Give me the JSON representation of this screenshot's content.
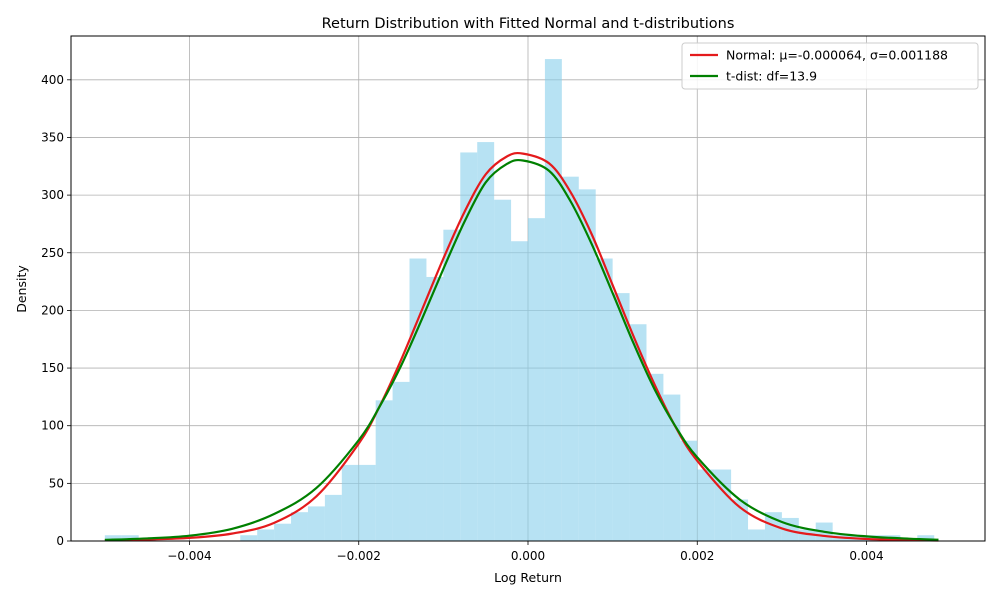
{
  "chart_data": {
    "type": "bar",
    "title": "Return Distribution with Fitted Normal and t-distributions",
    "xlabel": "Log Return",
    "ylabel": "Density",
    "xlim": [
      -0.0054,
      0.0054
    ],
    "ylim": [
      0,
      438
    ],
    "x_ticks": [
      -0.004,
      -0.002,
      0.0,
      0.002,
      0.004
    ],
    "x_tick_labels": [
      "−0.004",
      "−0.002",
      "0.000",
      "0.002",
      "0.004"
    ],
    "y_ticks": [
      0,
      50,
      100,
      150,
      200,
      250,
      300,
      350,
      400
    ],
    "y_tick_labels": [
      "0",
      "50",
      "100",
      "150",
      "200",
      "250",
      "300",
      "350",
      "400"
    ],
    "grid": true,
    "legend_position": "top-right",
    "histogram": {
      "color": "#87ceeb",
      "opacity": 0.6,
      "bins": [
        {
          "x0": -0.005,
          "x1": -0.0048,
          "value": 5
        },
        {
          "x0": -0.0048,
          "x1": -0.0046,
          "value": 5
        },
        {
          "x0": -0.0046,
          "x1": -0.0044,
          "value": 2
        },
        {
          "x0": -0.0044,
          "x1": -0.0042,
          "value": 0
        },
        {
          "x0": -0.0042,
          "x1": -0.004,
          "value": 0
        },
        {
          "x0": -0.004,
          "x1": -0.0038,
          "value": 0
        },
        {
          "x0": -0.0038,
          "x1": -0.0036,
          "value": 0
        },
        {
          "x0": -0.0036,
          "x1": -0.0034,
          "value": 0
        },
        {
          "x0": -0.0034,
          "x1": -0.0032,
          "value": 5
        },
        {
          "x0": -0.0032,
          "x1": -0.003,
          "value": 10
        },
        {
          "x0": -0.003,
          "x1": -0.0028,
          "value": 15
        },
        {
          "x0": -0.0028,
          "x1": -0.0026,
          "value": 25
        },
        {
          "x0": -0.0026,
          "x1": -0.0024,
          "value": 30
        },
        {
          "x0": -0.0024,
          "x1": -0.0022,
          "value": 40
        },
        {
          "x0": -0.0022,
          "x1": -0.002,
          "value": 66
        },
        {
          "x0": -0.002,
          "x1": -0.0018,
          "value": 66
        },
        {
          "x0": -0.0018,
          "x1": -0.0016,
          "value": 122
        },
        {
          "x0": -0.0016,
          "x1": -0.0014,
          "value": 138
        },
        {
          "x0": -0.0014,
          "x1": -0.0012,
          "value": 245
        },
        {
          "x0": -0.0012,
          "x1": -0.001,
          "value": 229
        },
        {
          "x0": -0.001,
          "x1": -0.0008,
          "value": 270
        },
        {
          "x0": -0.0008,
          "x1": -0.0006,
          "value": 337
        },
        {
          "x0": -0.0006,
          "x1": -0.0004,
          "value": 346
        },
        {
          "x0": -0.0004,
          "x1": -0.0002,
          "value": 296
        },
        {
          "x0": -0.0002,
          "x1": 0.0,
          "value": 260
        },
        {
          "x0": 0.0,
          "x1": 0.0002,
          "value": 280
        },
        {
          "x0": 0.0002,
          "x1": 0.0004,
          "value": 418
        },
        {
          "x0": 0.0004,
          "x1": 0.0006,
          "value": 316
        },
        {
          "x0": 0.0006,
          "x1": 0.0008,
          "value": 305
        },
        {
          "x0": 0.0008,
          "x1": 0.001,
          "value": 245
        },
        {
          "x0": 0.001,
          "x1": 0.0012,
          "value": 215
        },
        {
          "x0": 0.0012,
          "x1": 0.0014,
          "value": 188
        },
        {
          "x0": 0.0014,
          "x1": 0.0016,
          "value": 145
        },
        {
          "x0": 0.0016,
          "x1": 0.0018,
          "value": 127
        },
        {
          "x0": 0.0018,
          "x1": 0.002,
          "value": 87
        },
        {
          "x0": 0.002,
          "x1": 0.0022,
          "value": 62
        },
        {
          "x0": 0.0022,
          "x1": 0.0024,
          "value": 62
        },
        {
          "x0": 0.0024,
          "x1": 0.0026,
          "value": 36
        },
        {
          "x0": 0.0026,
          "x1": 0.0028,
          "value": 10
        },
        {
          "x0": 0.0028,
          "x1": 0.003,
          "value": 25
        },
        {
          "x0": 0.003,
          "x1": 0.0032,
          "value": 20
        },
        {
          "x0": 0.0032,
          "x1": 0.0034,
          "value": 10
        },
        {
          "x0": 0.0034,
          "x1": 0.0036,
          "value": 16
        },
        {
          "x0": 0.0036,
          "x1": 0.0038,
          "value": 5
        },
        {
          "x0": 0.0038,
          "x1": 0.004,
          "value": 5
        },
        {
          "x0": 0.004,
          "x1": 0.0042,
          "value": 5
        },
        {
          "x0": 0.0042,
          "x1": 0.0044,
          "value": 5
        },
        {
          "x0": 0.0044,
          "x1": 0.0046,
          "value": 0
        },
        {
          "x0": 0.0046,
          "x1": 0.0048,
          "value": 5
        }
      ]
    },
    "series": [
      {
        "name": "Normal: μ=-0.000064, σ=0.001188",
        "type": "line",
        "color": "#e41a1c",
        "x": [
          -0.005,
          -0.0045,
          -0.004,
          -0.0035,
          -0.003,
          -0.0025,
          -0.002,
          -0.00175,
          -0.0015,
          -0.00125,
          -0.001,
          -0.00075,
          -0.0005,
          -0.00025,
          -6e-05,
          0.00025,
          0.0005,
          0.00075,
          0.001,
          0.00125,
          0.0015,
          0.00175,
          0.002,
          0.0025,
          0.003,
          0.0035,
          0.004,
          0.0045,
          0.00485
        ],
        "y": [
          0.6,
          1.4,
          2.7,
          6.4,
          15.7,
          38.8,
          84.5,
          117.3,
          157.0,
          201.0,
          245.0,
          285.5,
          318.0,
          333.5,
          336.0,
          327.5,
          303.0,
          266.5,
          222.0,
          177.0,
          135.0,
          98.0,
          69.6,
          29.5,
          10.9,
          4.4,
          1.8,
          0.8,
          0.4
        ]
      },
      {
        "name": "t-dist: df=13.9",
        "type": "line",
        "color": "#008000",
        "x": [
          -0.005,
          -0.0045,
          -0.004,
          -0.0035,
          -0.003,
          -0.0025,
          -0.002,
          -0.00175,
          -0.0015,
          -0.00125,
          -0.001,
          -0.00075,
          -0.0005,
          -0.00025,
          -6e-05,
          0.00025,
          0.0005,
          0.00075,
          0.001,
          0.00125,
          0.0015,
          0.00175,
          0.002,
          0.0025,
          0.003,
          0.0035,
          0.004,
          0.0045,
          0.00485
        ],
        "y": [
          1.0,
          2.2,
          4.6,
          10.5,
          23.4,
          46.0,
          87.5,
          117.0,
          152.0,
          193.0,
          236.0,
          277.0,
          311.0,
          327.0,
          330.0,
          321.0,
          295.0,
          258.0,
          215.0,
          171.0,
          131.0,
          98.5,
          72.5,
          36.0,
          16.5,
          8.0,
          4.0,
          2.0,
          1.1
        ]
      }
    ]
  }
}
